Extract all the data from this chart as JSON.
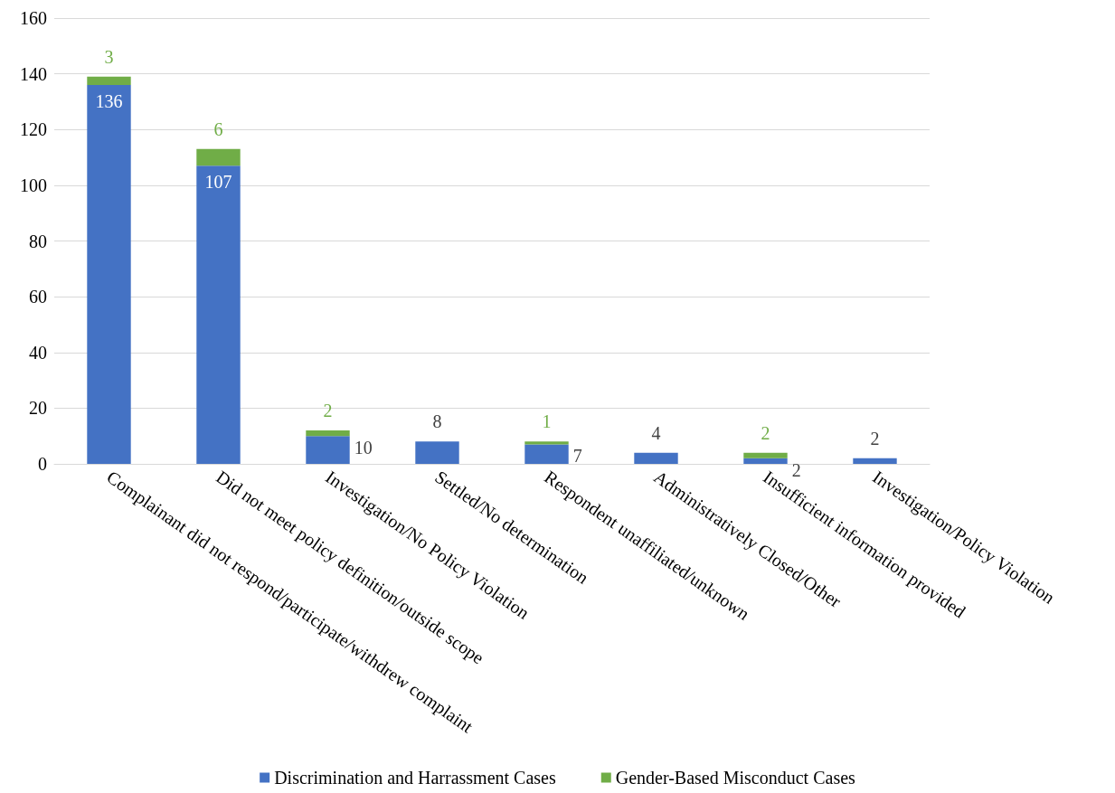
{
  "chart_data": {
    "type": "bar",
    "stacked": true,
    "categories": [
      "Complainant did not respond/participate/withdrew complaint",
      "Did not meet policy definition/outside scope",
      "Investigation/No Policy Violation",
      "Settled/No determination",
      "Respondent unaffiliated/unknown",
      "Administratively Closed/Other",
      "Insufficient information provided",
      "Investigation/Policy Violation"
    ],
    "series": [
      {
        "name": "Discrimination and Harrassment Cases",
        "color": "#4472c4",
        "values": [
          136,
          107,
          10,
          8,
          7,
          4,
          2,
          2
        ],
        "value_labels": [
          "136",
          "107",
          "10",
          "8",
          "7",
          "4",
          "2",
          "2"
        ]
      },
      {
        "name": "Gender-Based Misconduct Cases",
        "color": "#70ad47",
        "values": [
          3,
          6,
          2,
          null,
          1,
          null,
          2,
          null
        ],
        "value_labels": [
          "3",
          "6",
          "2",
          null,
          "1",
          null,
          "2",
          null
        ]
      }
    ],
    "ylim": [
      0,
      160
    ],
    "yticks": [
      0,
      20,
      40,
      60,
      80,
      100,
      120,
      140,
      160
    ],
    "grid": "y",
    "legend": "bottom"
  }
}
